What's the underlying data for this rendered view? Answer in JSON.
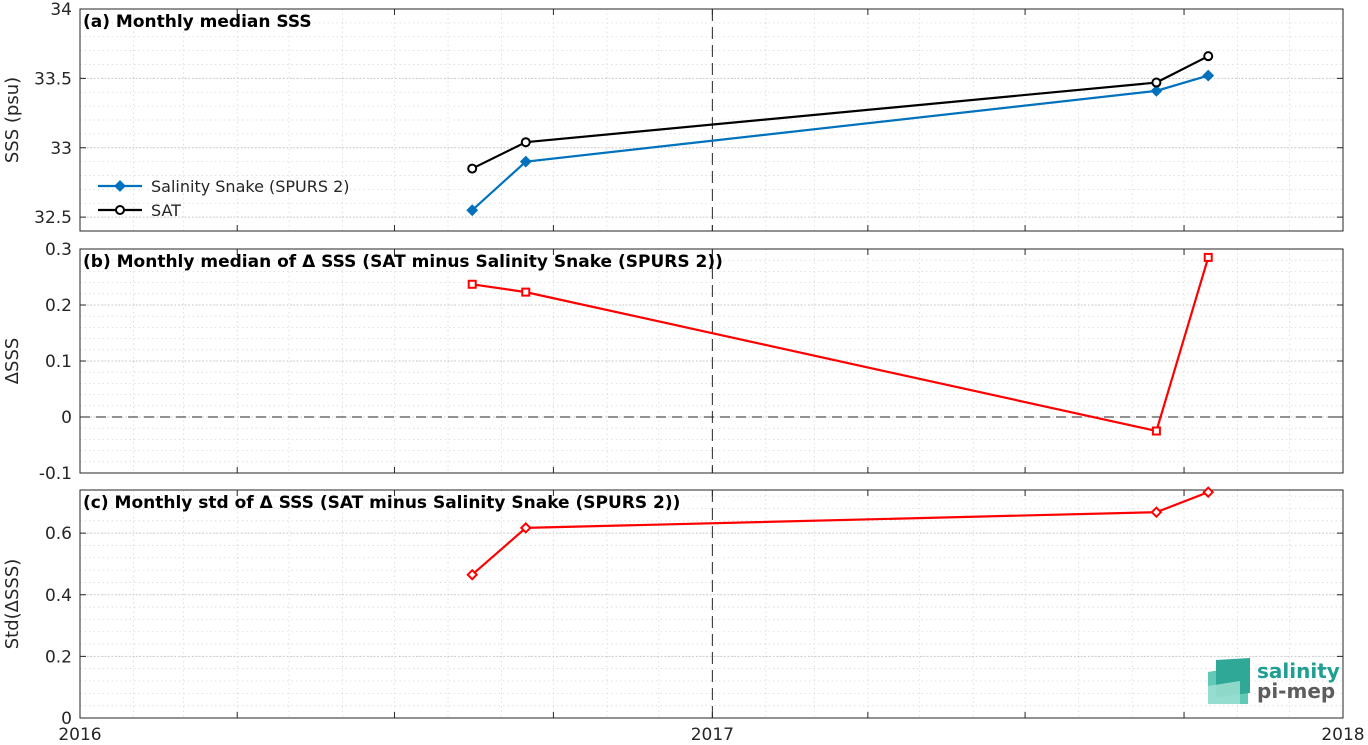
{
  "chart_data": [
    {
      "type": "line",
      "title": "(a) Monthly median SSS",
      "ylabel": "SSS (psu)",
      "xlim": [
        "2016-01-01",
        "2018-01-01"
      ],
      "ylim": [
        32.4,
        34
      ],
      "yticks": [
        32.5,
        33,
        33.5,
        34
      ],
      "ytick_labels": [
        "32.5",
        "33",
        "33.5",
        "34"
      ],
      "grid": true,
      "legend": "left",
      "series": [
        {
          "name": "Salinity Snake (SPURS 2)",
          "color": "#0072bd",
          "marker": "diamond-filled",
          "x": [
            "2016-08-15",
            "2016-09-15",
            "2017-09-15",
            "2017-10-15"
          ],
          "values": [
            32.55,
            32.9,
            33.41,
            33.52
          ]
        },
        {
          "name": "SAT",
          "color": "#000000",
          "marker": "circle-open",
          "x": [
            "2016-08-15",
            "2016-09-15",
            "2017-09-15",
            "2017-10-15"
          ],
          "values": [
            32.85,
            33.04,
            33.47,
            33.66
          ]
        }
      ]
    },
    {
      "type": "line",
      "title": "(b) Monthly median of Δ SSS (SAT minus Salinity Snake (SPURS 2))",
      "ylabel": "ΔSSS",
      "xlim": [
        "2016-01-01",
        "2018-01-01"
      ],
      "ylim": [
        -0.1,
        0.3
      ],
      "yticks": [
        -0.1,
        0,
        0.1,
        0.2,
        0.3
      ],
      "ytick_labels": [
        "-0.1",
        "0",
        "0.1",
        "0.2",
        "0.3"
      ],
      "grid": true,
      "zero_line": true,
      "series": [
        {
          "color": "#ff0000",
          "marker": "square",
          "x": [
            "2016-08-15",
            "2016-09-15",
            "2017-09-15",
            "2017-10-15"
          ],
          "values": [
            0.237,
            0.223,
            -0.025,
            0.285
          ]
        }
      ]
    },
    {
      "type": "line",
      "title": "(c) Monthly std of Δ SSS (SAT minus Salinity Snake (SPURS 2))",
      "ylabel": "Std(ΔSSS)",
      "xlim": [
        "2016-01-01",
        "2018-01-01"
      ],
      "ylim": [
        0,
        0.74
      ],
      "yticks": [
        0,
        0.2,
        0.4,
        0.6
      ],
      "ytick_labels": [
        "0",
        "0.2",
        "0.4",
        "0.6"
      ],
      "xticks": [
        "2016-01-01",
        "2017-01-01",
        "2018-01-01"
      ],
      "xtick_labels": [
        "2016",
        "2017",
        "2018"
      ],
      "grid": true,
      "series": [
        {
          "color": "#ff0000",
          "marker": "diamond-open",
          "x": [
            "2016-08-15",
            "2016-09-15",
            "2017-09-15",
            "2017-10-15"
          ],
          "values": [
            0.465,
            0.617,
            0.668,
            0.733
          ]
        }
      ]
    }
  ],
  "logo": {
    "line1": "salinity",
    "line2": "pi-mep",
    "colors": [
      "#1f9e92",
      "#5d5d5d"
    ]
  },
  "year_divider": "2017-01-01"
}
